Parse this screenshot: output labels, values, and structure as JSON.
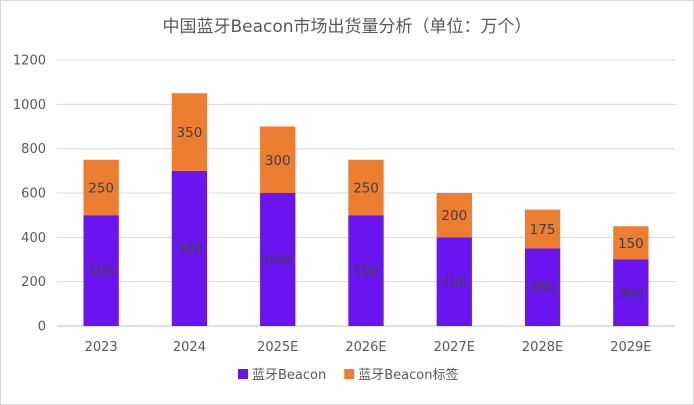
{
  "chart_data": {
    "type": "bar",
    "stacked": true,
    "title": "中国蓝牙Beacon市场出货量分析（单位：万个）",
    "categories": [
      "2023",
      "2024",
      "2025E",
      "2026E",
      "2027E",
      "2028E",
      "2029E"
    ],
    "series": [
      {
        "name": "蓝牙Beacon",
        "values": [
          500,
          700,
          600,
          500,
          400,
          350,
          300
        ],
        "color": "#6a15ef"
      },
      {
        "name": "蓝牙Beacon标签",
        "values": [
          250,
          350,
          300,
          250,
          200,
          175,
          150
        ],
        "color": "#ed7d31"
      }
    ],
    "ylim": [
      0,
      1200
    ],
    "yticks": [
      0,
      200,
      400,
      600,
      800,
      1000,
      1200
    ],
    "grid": true,
    "legend_position": "bottom"
  }
}
